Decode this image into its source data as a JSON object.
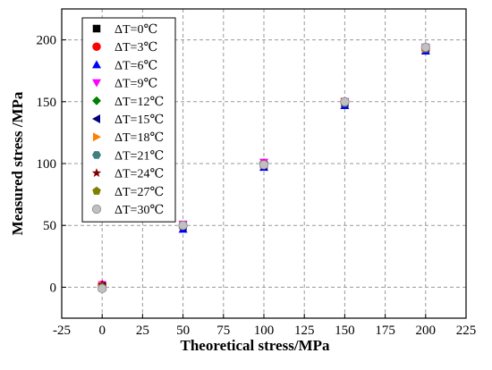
{
  "chart_data": {
    "type": "scatter",
    "xlabel": "Theoretical stress/MPa",
    "ylabel": "Measured stress /MPa",
    "xlim": [
      -25,
      225
    ],
    "ylim": [
      -25,
      225
    ],
    "xticks": [
      -25,
      0,
      25,
      50,
      75,
      100,
      125,
      150,
      175,
      200,
      225
    ],
    "yticks": [
      0,
      50,
      100,
      150,
      200
    ],
    "grid": true,
    "legend_position": "top-left",
    "series": [
      {
        "name": "ΔT=0℃",
        "marker": "square",
        "color": "#000000",
        "x": [
          0,
          50,
          100,
          150,
          200
        ],
        "y": [
          1,
          50,
          99,
          149,
          193
        ]
      },
      {
        "name": "ΔT=3℃",
        "marker": "circle",
        "color": "#ff0000",
        "x": [
          0,
          50,
          100,
          150,
          200
        ],
        "y": [
          2,
          49,
          99,
          149,
          192
        ]
      },
      {
        "name": "ΔT=6℃",
        "marker": "triangle-up",
        "color": "#0000ff",
        "x": [
          0,
          50,
          100,
          150,
          200
        ],
        "y": [
          0,
          47,
          97,
          147,
          191
        ]
      },
      {
        "name": "ΔT=9℃",
        "marker": "triangle-down",
        "color": "#ff00ff",
        "x": [
          0,
          50,
          100,
          150,
          200
        ],
        "y": [
          2,
          51,
          101,
          150,
          194
        ]
      },
      {
        "name": "ΔT=12℃",
        "marker": "diamond",
        "color": "#008000",
        "x": [
          0,
          50,
          100,
          150,
          200
        ],
        "y": [
          1,
          50,
          99,
          149,
          193
        ]
      },
      {
        "name": "ΔT=15℃",
        "marker": "triangle-left",
        "color": "#000080",
        "x": [
          0,
          50,
          100,
          150,
          200
        ],
        "y": [
          1,
          49,
          98,
          149,
          193
        ]
      },
      {
        "name": "ΔT=18℃",
        "marker": "triangle-right",
        "color": "#ff8000",
        "x": [
          0,
          50,
          100,
          150,
          200
        ],
        "y": [
          1,
          50,
          99,
          150,
          193
        ]
      },
      {
        "name": "ΔT=21℃",
        "marker": "hexagon",
        "color": "#408080",
        "x": [
          0,
          50,
          100,
          150,
          200
        ],
        "y": [
          0,
          50,
          99,
          149,
          193
        ]
      },
      {
        "name": "ΔT=24℃",
        "marker": "star",
        "color": "#800000",
        "x": [
          0,
          50,
          100,
          150,
          200
        ],
        "y": [
          2,
          50,
          100,
          150,
          194
        ]
      },
      {
        "name": "ΔT=27℃",
        "marker": "pentagon",
        "color": "#808000",
        "x": [
          0,
          50,
          100,
          150,
          200
        ],
        "y": [
          0,
          50,
          99,
          150,
          193
        ]
      },
      {
        "name": "ΔT=30℃",
        "marker": "circle",
        "color": "#c0c0c0",
        "x": [
          0,
          50,
          100,
          150,
          200
        ],
        "y": [
          -1,
          50,
          99,
          150,
          194
        ]
      }
    ]
  }
}
